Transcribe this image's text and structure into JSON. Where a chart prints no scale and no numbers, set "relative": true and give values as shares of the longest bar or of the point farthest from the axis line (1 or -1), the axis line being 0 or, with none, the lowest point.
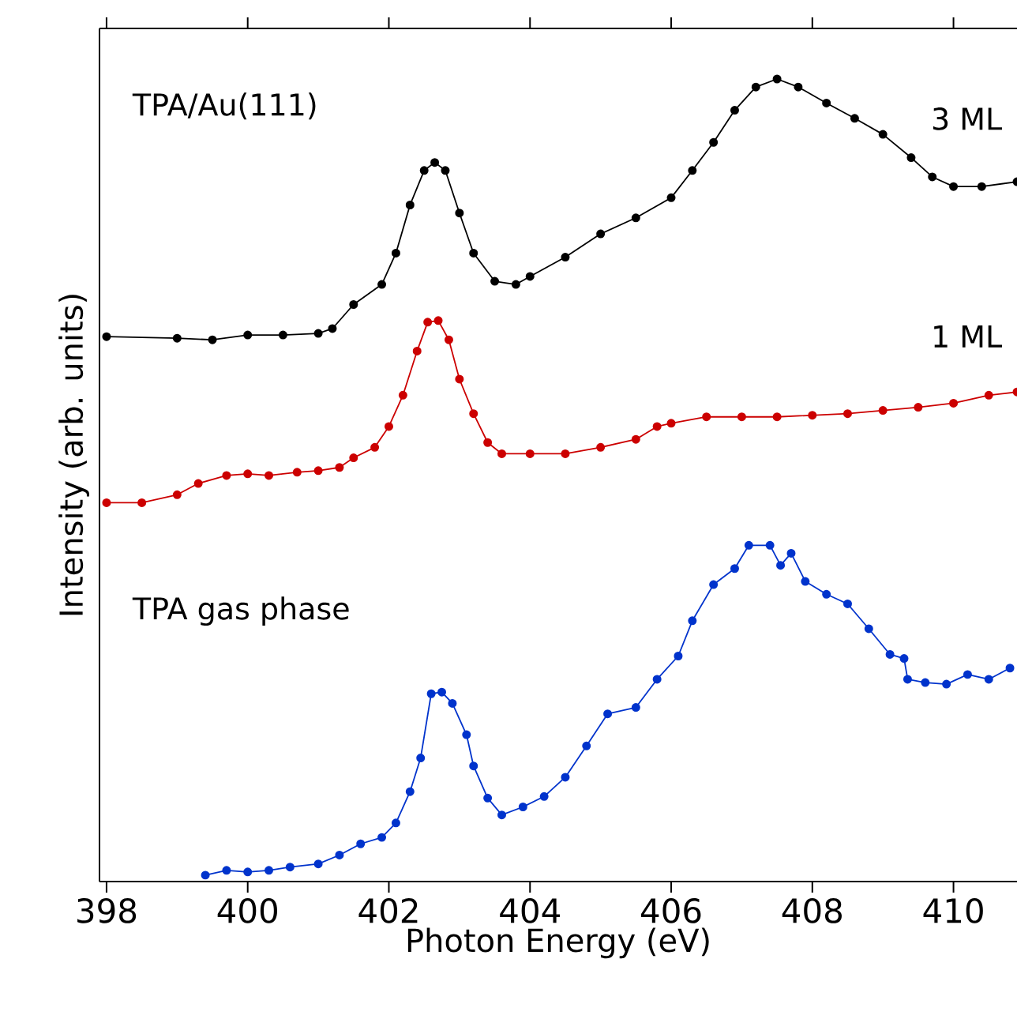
{
  "chart_data": {
    "type": "line",
    "relative": true,
    "xlabel": "Photon Energy (eV)",
    "ylabel": "Intensity (arb. units)",
    "xlim": [
      397.9,
      410.9
    ],
    "xticks": [
      398,
      400,
      402,
      404,
      406,
      408,
      410
    ],
    "marker": "circle",
    "line_style": "solid",
    "annotations": [
      "TPA/Au(111)",
      "TPA gas phase"
    ],
    "series": [
      {
        "name": "3 ML",
        "color": "#000000",
        "x": [
          398.0,
          399.0,
          399.5,
          400.0,
          400.5,
          401.0,
          401.2,
          401.5,
          401.9,
          402.1,
          402.3,
          402.5,
          402.65,
          402.8,
          403.0,
          403.2,
          403.5,
          403.8,
          404.0,
          404.5,
          405.0,
          405.5,
          406.0,
          406.3,
          406.6,
          406.9,
          407.2,
          407.5,
          407.8,
          408.2,
          408.6,
          409.0,
          409.4,
          409.7,
          410.0,
          410.4,
          410.9
        ],
        "values": [
          0.679,
          0.677,
          0.675,
          0.681,
          0.681,
          0.683,
          0.689,
          0.719,
          0.744,
          0.783,
          0.843,
          0.886,
          0.896,
          0.886,
          0.833,
          0.783,
          0.748,
          0.744,
          0.754,
          0.778,
          0.807,
          0.827,
          0.852,
          0.886,
          0.921,
          0.961,
          0.99,
          1.0,
          0.99,
          0.97,
          0.951,
          0.931,
          0.902,
          0.878,
          0.866,
          0.866,
          0.872
        ]
      },
      {
        "name": "1 ML",
        "color": "#cc0000",
        "x": [
          398.0,
          398.5,
          399.0,
          399.3,
          399.7,
          400.0,
          400.3,
          400.7,
          401.0,
          401.3,
          401.5,
          401.8,
          402.0,
          402.2,
          402.4,
          402.55,
          402.7,
          402.85,
          403.0,
          403.2,
          403.4,
          403.6,
          404.0,
          404.5,
          405.0,
          405.5,
          405.8,
          406.0,
          406.5,
          407.0,
          407.5,
          408.0,
          408.5,
          409.0,
          409.5,
          410.0,
          410.5,
          410.9
        ],
        "values": [
          0.472,
          0.472,
          0.482,
          0.496,
          0.506,
          0.508,
          0.506,
          0.51,
          0.512,
          0.516,
          0.528,
          0.541,
          0.567,
          0.606,
          0.661,
          0.697,
          0.699,
          0.675,
          0.626,
          0.583,
          0.547,
          0.533,
          0.533,
          0.533,
          0.541,
          0.551,
          0.567,
          0.571,
          0.579,
          0.579,
          0.579,
          0.581,
          0.583,
          0.587,
          0.591,
          0.596,
          0.606,
          0.61
        ]
      },
      {
        "color": "#0033cc",
        "x": [
          399.4,
          399.7,
          400.0,
          400.3,
          400.6,
          401.0,
          401.3,
          401.6,
          401.9,
          402.1,
          402.3,
          402.45,
          402.6,
          402.75,
          402.9,
          403.1,
          403.2,
          403.4,
          403.6,
          403.9,
          404.2,
          404.5,
          404.8,
          405.1,
          405.5,
          405.8,
          406.1,
          406.3,
          406.6,
          406.9,
          407.1,
          407.4,
          407.55,
          407.7,
          407.9,
          408.2,
          408.5,
          408.8,
          409.1,
          409.3,
          409.35,
          409.6,
          409.9,
          410.2,
          410.5,
          410.8
        ],
        "values": [
          0.008,
          0.014,
          0.012,
          0.014,
          0.018,
          0.022,
          0.033,
          0.047,
          0.055,
          0.073,
          0.112,
          0.154,
          0.234,
          0.236,
          0.222,
          0.183,
          0.144,
          0.104,
          0.083,
          0.093,
          0.106,
          0.13,
          0.169,
          0.209,
          0.217,
          0.252,
          0.281,
          0.325,
          0.37,
          0.39,
          0.419,
          0.419,
          0.394,
          0.409,
          0.374,
          0.358,
          0.346,
          0.315,
          0.283,
          0.278,
          0.252,
          0.248,
          0.246,
          0.258,
          0.252,
          0.266
        ]
      }
    ]
  }
}
